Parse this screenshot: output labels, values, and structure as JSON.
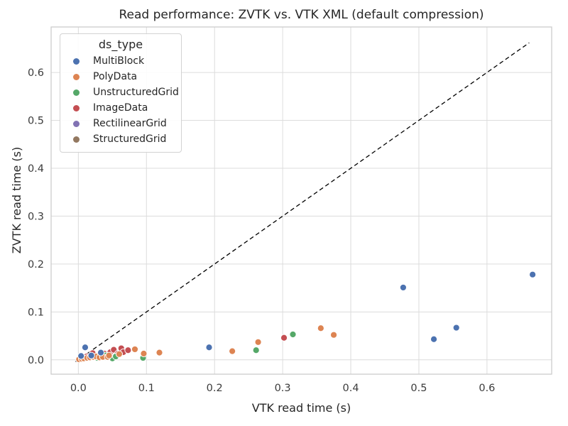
{
  "chart_data": {
    "type": "scatter",
    "title": "Read performance: ZVTK vs. VTK XML (default compression)",
    "xlabel": "VTK read time (s)",
    "ylabel": "ZVTK read time (s)",
    "xlim": [
      -0.04,
      0.695
    ],
    "ylim": [
      -0.03,
      0.695
    ],
    "xticks": [
      0.0,
      0.1,
      0.2,
      0.3,
      0.4,
      0.5,
      0.6
    ],
    "yticks": [
      0.0,
      0.1,
      0.2,
      0.3,
      0.4,
      0.5,
      0.6
    ],
    "grid": true,
    "grid_color": "#dcdcdc",
    "axes_edge_color": "#cccccc",
    "legend": {
      "title": "ds_type",
      "position": "upper-left"
    },
    "reference_line": {
      "name": "identity-line",
      "style": "dashed",
      "color": "#000000",
      "from": [
        -0.004,
        -0.004
      ],
      "to": [
        0.662,
        0.662
      ]
    },
    "series": [
      {
        "name": "MultiBlock",
        "color": "#4C72B0",
        "points": [
          [
            0.004,
            0.008
          ],
          [
            0.01,
            0.026
          ],
          [
            0.019,
            0.009
          ],
          [
            0.033,
            0.015
          ],
          [
            0.192,
            0.026
          ],
          [
            0.477,
            0.151
          ],
          [
            0.522,
            0.043
          ],
          [
            0.555,
            0.067
          ],
          [
            0.667,
            0.178
          ]
        ]
      },
      {
        "name": "PolyData",
        "color": "#DD8452",
        "points": [
          [
            0.001,
            0.001
          ],
          [
            0.005,
            0.002
          ],
          [
            0.008,
            0.003
          ],
          [
            0.013,
            0.004
          ],
          [
            0.017,
            0.005
          ],
          [
            0.022,
            0.006
          ],
          [
            0.026,
            0.007
          ],
          [
            0.031,
            0.005
          ],
          [
            0.036,
            0.006
          ],
          [
            0.043,
            0.006
          ],
          [
            0.045,
            0.009
          ],
          [
            0.06,
            0.012
          ],
          [
            0.083,
            0.022
          ],
          [
            0.096,
            0.013
          ],
          [
            0.119,
            0.015
          ],
          [
            0.226,
            0.018
          ],
          [
            0.264,
            0.037
          ],
          [
            0.356,
            0.066
          ],
          [
            0.375,
            0.052
          ]
        ]
      },
      {
        "name": "UnstructuredGrid",
        "color": "#55A868",
        "points": [
          [
            0.028,
            0.004
          ],
          [
            0.04,
            0.009
          ],
          [
            0.05,
            0.003
          ],
          [
            0.055,
            0.007
          ],
          [
            0.095,
            0.004
          ],
          [
            0.261,
            0.02
          ],
          [
            0.315,
            0.053
          ]
        ]
      },
      {
        "name": "ImageData",
        "color": "#C44E52",
        "points": [
          [
            0.012,
            0.007
          ],
          [
            0.021,
            0.014
          ],
          [
            0.031,
            0.01
          ],
          [
            0.038,
            0.013
          ],
          [
            0.047,
            0.016
          ],
          [
            0.052,
            0.021
          ],
          [
            0.058,
            0.013
          ],
          [
            0.063,
            0.024
          ],
          [
            0.066,
            0.016
          ],
          [
            0.073,
            0.02
          ],
          [
            0.302,
            0.046
          ]
        ]
      },
      {
        "name": "RectilinearGrid",
        "color": "#8172B3",
        "points": [
          [
            0.003,
            0.002
          ],
          [
            0.007,
            0.004
          ],
          [
            0.012,
            0.003
          ]
        ]
      },
      {
        "name": "StructuredGrid",
        "color": "#937860",
        "points": [
          [
            0.005,
            0.003
          ],
          [
            0.01,
            0.005
          ],
          [
            0.016,
            0.004
          ]
        ]
      }
    ]
  }
}
